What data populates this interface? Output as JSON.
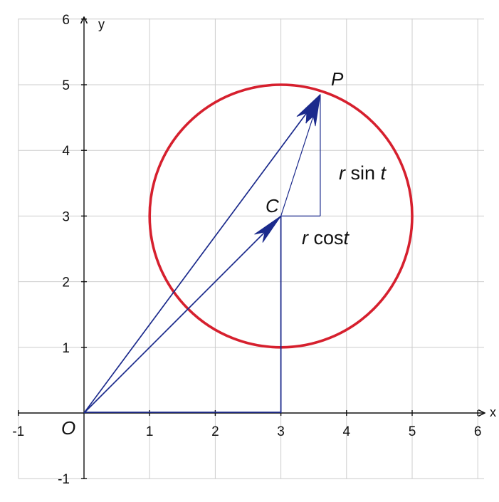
{
  "axes": {
    "x_label": "x",
    "y_label": "y",
    "x_ticks": [
      "-1",
      "1",
      "2",
      "3",
      "4",
      "5",
      "6"
    ],
    "y_ticks": [
      "6",
      "5",
      "4",
      "3",
      "2",
      "1",
      "-1"
    ],
    "x_range": [
      -1,
      6
    ],
    "y_range": [
      -1,
      6
    ]
  },
  "points": {
    "origin": {
      "label": "O",
      "x": 0,
      "y": 0
    },
    "center": {
      "label": "C",
      "x": 3,
      "y": 3
    },
    "point": {
      "label": "P",
      "x": 3.6,
      "y": 4.85
    }
  },
  "circle": {
    "center_x": 3,
    "center_y": 3,
    "radius": 2
  },
  "labels": {
    "r_sin": {
      "r": "r",
      "fn": " sin ",
      "t": "t"
    },
    "r_cos": {
      "r": "r",
      "fn": " cos",
      "t": "t"
    }
  },
  "colors": {
    "circle": "#d6202e",
    "vectors": "#1b2a8c",
    "grid": "#cccccc",
    "axes": "#111111"
  }
}
